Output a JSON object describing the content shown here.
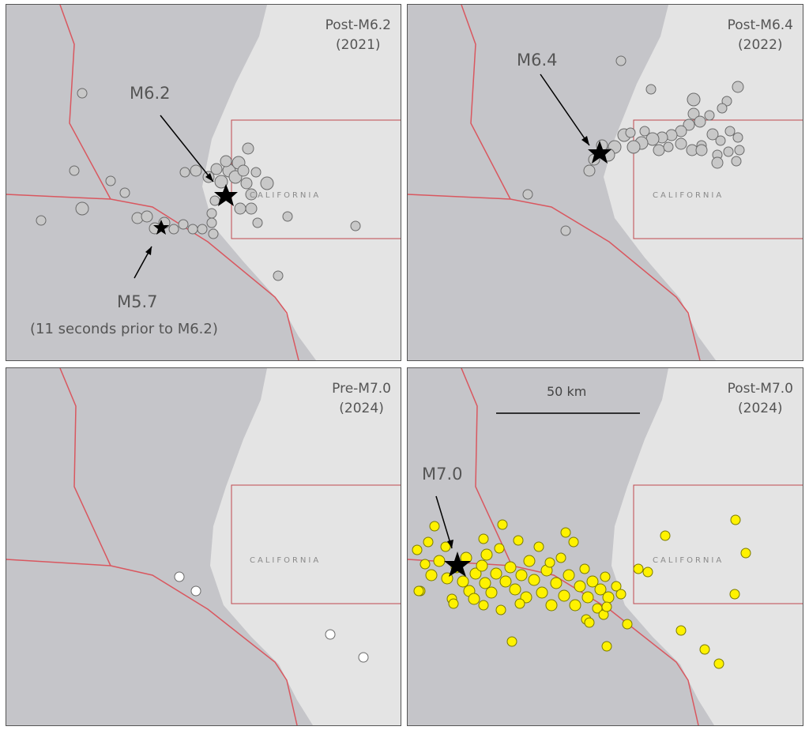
{
  "panels": [
    {
      "title_line1": "Post-M6.2",
      "title_line2": "(2021)",
      "state_label": "CALIFORNIA",
      "main_label": "M6.2",
      "foreshock_label": "M5.7",
      "foreshock_note": "(11 seconds prior to M6.2)",
      "marker_color": "#c8c8c8",
      "marker_stroke": "#6a6a6a"
    },
    {
      "title_line1": "Post-M6.4",
      "title_line2": "(2022)",
      "state_label": "CALIFORNIA",
      "main_label": "M6.4",
      "marker_color": "#c8c8c8",
      "marker_stroke": "#6a6a6a"
    },
    {
      "title_line1": "Pre-M7.0",
      "title_line2": "(2024)",
      "state_label": "CALIFORNIA",
      "marker_color": "#ffffff",
      "marker_stroke": "#6a6a6a"
    },
    {
      "title_line1": "Post-M7.0",
      "title_line2": "(2024)",
      "state_label": "CALIFORNIA",
      "main_label": "M7.0",
      "scale_label": "50 km",
      "marker_color": "#fff200",
      "marker_stroke": "#7a7a00"
    }
  ],
  "colors": {
    "ocean": "#c5c5c9",
    "land": "#e4e4e4",
    "plate_boundary": "#d9575f",
    "state_box": "#c0484e",
    "star": "#000000"
  }
}
